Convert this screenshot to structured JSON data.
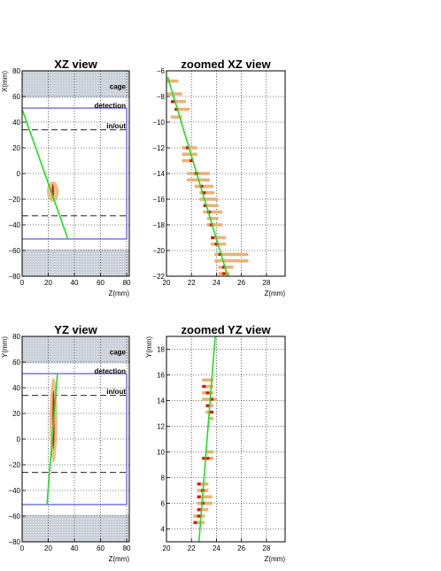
{
  "chart_data": [
    {
      "type": "scatter",
      "title": "XZ view",
      "xlabel": "Z(mm)",
      "ylabel": "X(mm)",
      "xlim": [
        0,
        82
      ],
      "ylim": [
        -80,
        80
      ],
      "xticks": [
        0,
        20,
        40,
        60,
        80
      ],
      "yticks": [
        -80,
        -60,
        -40,
        -20,
        0,
        20,
        40,
        60,
        80
      ],
      "grid": true,
      "labels": {
        "cage": "cage",
        "detection": "detection",
        "inout": "in/out"
      },
      "cage_bands": [
        [
          -80,
          -59
        ],
        [
          59,
          80
        ]
      ],
      "detection_box": {
        "x": [
          0,
          80
        ],
        "y": [
          -51,
          51
        ]
      },
      "inout_lines": [
        34,
        -33
      ],
      "track": {
        "x": [
          0,
          35
        ],
        "y": [
          50,
          -51
        ]
      },
      "cluster": {
        "z_range": [
          19,
          28
        ],
        "x_range": [
          -22,
          -6
        ]
      }
    },
    {
      "type": "scatter",
      "title": "zoomed XZ view",
      "xlabel": "Z(mm)",
      "xlim": [
        20,
        29.5
      ],
      "ylim": [
        -22,
        -6
      ],
      "xticks": [
        20,
        22,
        24,
        26,
        28
      ],
      "yticks": [
        -22,
        -20,
        -18,
        -16,
        -14,
        -12,
        -10,
        -8,
        -6
      ],
      "grid": true,
      "track": {
        "x": [
          20.1,
          24.9
        ],
        "y": [
          -6.5,
          -22
        ]
      },
      "hits_orange": [
        [
          20.2,
          -6.8
        ],
        [
          20.5,
          -6.8
        ],
        [
          20.8,
          -6.8
        ],
        [
          20.2,
          -7.8
        ],
        [
          20.5,
          -7.8
        ],
        [
          20.8,
          -7.8
        ],
        [
          21.1,
          -7.8
        ],
        [
          20.5,
          -8.4
        ],
        [
          20.8,
          -8.4
        ],
        [
          21.1,
          -8.4
        ],
        [
          21.4,
          -8.4
        ],
        [
          20.8,
          -9.0
        ],
        [
          21.1,
          -9.0
        ],
        [
          21.4,
          -9.0
        ],
        [
          21.7,
          -9.0
        ],
        [
          20.5,
          -9.6
        ],
        [
          20.8,
          -9.6
        ],
        [
          21.1,
          -9.6
        ],
        [
          21.4,
          -12.0
        ],
        [
          21.7,
          -12.0
        ],
        [
          22.0,
          -12.0
        ],
        [
          22.3,
          -12.0
        ],
        [
          21.4,
          -12.5
        ],
        [
          21.7,
          -12.5
        ],
        [
          22.0,
          -12.5
        ],
        [
          22.3,
          -12.5
        ],
        [
          21.4,
          -13.0
        ],
        [
          21.7,
          -13.0
        ],
        [
          22.0,
          -13.0
        ],
        [
          21.8,
          -14.0
        ],
        [
          22.1,
          -14.0
        ],
        [
          22.4,
          -14.0
        ],
        [
          22.7,
          -14.0
        ],
        [
          23.0,
          -14.0
        ],
        [
          23.3,
          -14.0
        ],
        [
          21.8,
          -14.5
        ],
        [
          22.1,
          -14.5
        ],
        [
          22.4,
          -14.5
        ],
        [
          22.7,
          -14.5
        ],
        [
          23.0,
          -14.5
        ],
        [
          23.3,
          -14.5
        ],
        [
          22.4,
          -15.0
        ],
        [
          22.7,
          -15.0
        ],
        [
          23.0,
          -15.0
        ],
        [
          23.3,
          -15.0
        ],
        [
          23.6,
          -15.0
        ],
        [
          22.8,
          -15.5
        ],
        [
          23.1,
          -15.5
        ],
        [
          23.4,
          -15.5
        ],
        [
          23.7,
          -15.5
        ],
        [
          22.8,
          -16.0
        ],
        [
          23.1,
          -16.0
        ],
        [
          23.4,
          -16.0
        ],
        [
          23.7,
          -16.0
        ],
        [
          24.0,
          -16.0
        ],
        [
          23.1,
          -16.5
        ],
        [
          23.4,
          -16.5
        ],
        [
          23.7,
          -16.5
        ],
        [
          24.0,
          -16.5
        ],
        [
          23.1,
          -17.0
        ],
        [
          23.4,
          -17.0
        ],
        [
          23.7,
          -17.0
        ],
        [
          24.0,
          -17.0
        ],
        [
          24.3,
          -17.0
        ],
        [
          23.4,
          -17.5
        ],
        [
          23.7,
          -17.5
        ],
        [
          24.0,
          -17.5
        ],
        [
          23.4,
          -18.0
        ],
        [
          23.7,
          -18.0
        ],
        [
          24.0,
          -18.0
        ],
        [
          24.3,
          -18.0
        ],
        [
          23.7,
          -19.0
        ],
        [
          24.0,
          -19.0
        ],
        [
          24.3,
          -19.0
        ],
        [
          24.6,
          -19.0
        ],
        [
          23.7,
          -19.5
        ],
        [
          24.0,
          -19.5
        ],
        [
          24.3,
          -19.5
        ],
        [
          24.6,
          -19.5
        ],
        [
          24.0,
          -20.3
        ],
        [
          24.3,
          -20.3
        ],
        [
          24.6,
          -20.3
        ],
        [
          24.9,
          -20.3
        ],
        [
          25.2,
          -20.3
        ],
        [
          25.5,
          -20.3
        ],
        [
          25.8,
          -20.3
        ],
        [
          26.1,
          -20.3
        ],
        [
          26.4,
          -20.3
        ],
        [
          24.0,
          -20.8
        ],
        [
          24.3,
          -20.8
        ],
        [
          24.6,
          -20.8
        ],
        [
          24.9,
          -20.8
        ],
        [
          25.2,
          -20.8
        ],
        [
          25.5,
          -20.8
        ],
        [
          25.8,
          -20.8
        ],
        [
          26.1,
          -20.8
        ],
        [
          26.4,
          -20.8
        ],
        [
          24.3,
          -21.3
        ],
        [
          24.6,
          -21.3
        ],
        [
          24.9,
          -21.3
        ],
        [
          25.2,
          -21.3
        ],
        [
          24.3,
          -21.8
        ],
        [
          24.6,
          -21.8
        ],
        [
          24.9,
          -21.8
        ]
      ],
      "hits_red": [
        [
          20.5,
          -8.4
        ],
        [
          20.8,
          -9.0
        ],
        [
          21.7,
          -12.0
        ],
        [
          22.0,
          -13.0
        ],
        [
          22.4,
          -14.0
        ],
        [
          22.8,
          -15.0
        ],
        [
          23.0,
          -15.5
        ],
        [
          23.1,
          -16.5
        ],
        [
          23.4,
          -17.0
        ],
        [
          23.6,
          -18.0
        ],
        [
          23.7,
          -19.0
        ],
        [
          24.0,
          -19.5
        ],
        [
          24.3,
          -20.3
        ],
        [
          24.6,
          -21.3
        ],
        [
          24.6,
          -21.8
        ]
      ]
    },
    {
      "type": "scatter",
      "title": "YZ view",
      "xlabel": "Z(mm)",
      "ylabel": "Y(mm)",
      "xlim": [
        0,
        82
      ],
      "ylim": [
        -80,
        80
      ],
      "xticks": [
        0,
        20,
        40,
        60,
        80
      ],
      "yticks": [
        -80,
        -60,
        -40,
        -20,
        0,
        20,
        40,
        60,
        80
      ],
      "grid": true,
      "labels": {
        "cage": "cage",
        "detection": "detection",
        "inout": "in/out"
      },
      "cage_bands": [
        [
          -80,
          -59
        ],
        [
          59,
          80
        ]
      ],
      "detection_box": {
        "x": [
          0,
          80
        ],
        "y": [
          -51,
          51
        ]
      },
      "inout_lines": [
        34,
        -26
      ],
      "track": {
        "x": [
          19,
          27
        ],
        "y": [
          -51,
          51
        ]
      },
      "cluster": {
        "z_range": [
          21,
          27
        ],
        "x_range": [
          -18,
          48
        ]
      }
    },
    {
      "type": "scatter",
      "title": "zoomed YZ view",
      "xlabel": "Z(mm)",
      "ylabel": "Y(mm)",
      "xlim": [
        20,
        29.5
      ],
      "ylim": [
        3,
        19
      ],
      "xticks": [
        20,
        22,
        24,
        26,
        28
      ],
      "yticks": [
        4,
        6,
        8,
        10,
        12,
        14,
        16,
        18
      ],
      "grid": true,
      "track": {
        "x": [
          22.6,
          23.9
        ],
        "y": [
          3,
          19
        ]
      },
      "hits_orange": [
        [
          23.0,
          15.6
        ],
        [
          23.3,
          15.6
        ],
        [
          23.6,
          15.6
        ],
        [
          23.0,
          15.1
        ],
        [
          23.3,
          15.1
        ],
        [
          23.6,
          15.1
        ],
        [
          23.0,
          14.6
        ],
        [
          23.3,
          14.6
        ],
        [
          23.6,
          14.6
        ],
        [
          23.0,
          14.1
        ],
        [
          23.3,
          14.1
        ],
        [
          23.6,
          14.1
        ],
        [
          23.9,
          14.1
        ],
        [
          23.3,
          13.6
        ],
        [
          23.6,
          13.6
        ],
        [
          23.3,
          13.1
        ],
        [
          23.6,
          13.1
        ],
        [
          23.6,
          12.6
        ],
        [
          23.3,
          10.0
        ],
        [
          23.6,
          10.0
        ],
        [
          23.0,
          9.5
        ],
        [
          23.3,
          9.5
        ],
        [
          23.6,
          9.5
        ],
        [
          22.6,
          7.5
        ],
        [
          22.9,
          7.5
        ],
        [
          23.2,
          7.5
        ],
        [
          22.6,
          7.0
        ],
        [
          22.9,
          7.0
        ],
        [
          23.2,
          7.0
        ],
        [
          22.6,
          6.5
        ],
        [
          22.9,
          6.5
        ],
        [
          23.2,
          6.5
        ],
        [
          23.5,
          6.5
        ],
        [
          22.6,
          6.0
        ],
        [
          22.9,
          6.0
        ],
        [
          23.2,
          6.0
        ],
        [
          23.5,
          6.0
        ],
        [
          22.6,
          5.5
        ],
        [
          22.9,
          5.5
        ],
        [
          23.2,
          5.5
        ],
        [
          22.3,
          5.0
        ],
        [
          22.6,
          5.0
        ],
        [
          22.9,
          5.0
        ],
        [
          22.3,
          4.5
        ],
        [
          22.6,
          4.5
        ],
        [
          22.9,
          4.5
        ]
      ],
      "hits_red": [
        [
          23.0,
          15.1
        ],
        [
          23.3,
          14.6
        ],
        [
          23.6,
          14.1
        ],
        [
          23.3,
          13.6
        ],
        [
          23.6,
          13.1
        ],
        [
          23.3,
          9.5
        ],
        [
          23.0,
          9.5
        ],
        [
          22.6,
          7.5
        ],
        [
          22.9,
          7.0
        ],
        [
          22.6,
          6.5
        ],
        [
          22.9,
          6.0
        ],
        [
          22.6,
          5.5
        ],
        [
          22.6,
          5.0
        ],
        [
          22.3,
          4.5
        ]
      ]
    }
  ],
  "colors": {
    "track": "#22dd22",
    "hit_orange": "#e8b377",
    "hit_red": "#dd1111",
    "detection": "#3333cc",
    "cage": "#9aa7b7",
    "grid": "#000000"
  }
}
